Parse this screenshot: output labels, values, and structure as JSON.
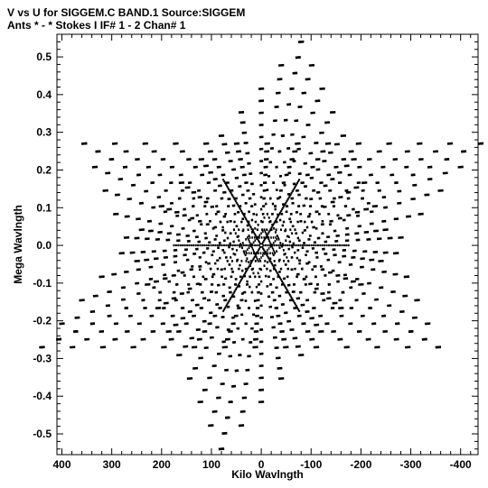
{
  "chart_data": {
    "type": "scatter",
    "title": "V vs U for SIGGEM.C BAND.1   Source:SIGGEM",
    "subtitle": "Ants * - *     Stokes I  IF# 1 - 2  Chan# 1",
    "xlabel": "Kilo Wavlngth",
    "ylabel": "Mega Wavlngth",
    "xlim": [
      410,
      -435
    ],
    "ylim": [
      -0.555,
      0.56
    ],
    "grid": false,
    "legend": "none",
    "x_ticks": [
      400,
      300,
      200,
      100,
      0,
      -100,
      -200,
      -300,
      -400
    ],
    "x_tick_labels": [
      "400",
      "300",
      "200",
      "100",
      "0",
      "-100",
      "-200",
      "-300",
      "-400"
    ],
    "y_ticks": [
      0.5,
      0.4,
      0.3,
      0.2,
      0.1,
      0.0,
      -0.1,
      -0.2,
      -0.3,
      -0.4,
      -0.5
    ],
    "y_tick_labels": [
      "0.5",
      "0.4",
      "0.3",
      "0.2",
      "0.1",
      "0.0",
      "-0.1",
      "-0.2",
      "-0.3",
      "-0.4",
      "-0.5"
    ],
    "point_color": "#000000",
    "pattern": {
      "description_units": "u in kilo-wavelength, v in mega-wavelength",
      "arms": 6,
      "arm_angle_offset_deg": 0,
      "arm_tips": [
        [
          -440,
          0.27
        ],
        [
          -80,
          0.54
        ],
        [
          355,
          0.27
        ],
        [
          440,
          -0.27
        ],
        [
          80,
          -0.54
        ],
        [
          -355,
          -0.27
        ]
      ],
      "rows_per_arm": 13,
      "points_per_row": 13
    }
  }
}
